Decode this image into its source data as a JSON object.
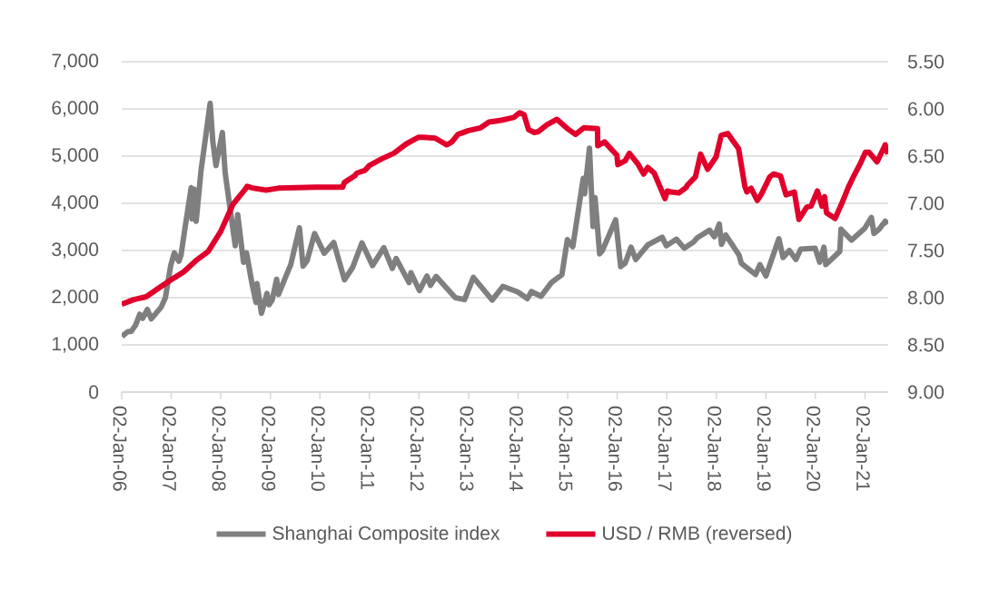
{
  "chart_data": {
    "type": "line",
    "series": [
      {
        "name": "Shanghai Composite index",
        "color": "#7f7f7f",
        "x": [
          "2006-01-04",
          "2006-02-15",
          "2006-03-15",
          "2006-04-15",
          "2006-05-15",
          "2006-06-05",
          "2006-07-10",
          "2006-08-08",
          "2006-09-15",
          "2006-10-20",
          "2006-11-20",
          "2006-12-29",
          "2007-01-25",
          "2007-02-27",
          "2007-03-15",
          "2007-04-15",
          "2007-05-29",
          "2007-06-05",
          "2007-06-20",
          "2007-07-05",
          "2007-08-10",
          "2007-09-10",
          "2007-10-16",
          "2007-11-05",
          "2007-11-28",
          "2008-01-14",
          "2008-02-04",
          "2008-03-31",
          "2008-04-18",
          "2008-05-06",
          "2008-06-18",
          "2008-07-10",
          "2008-08-18",
          "2008-09-18",
          "2008-09-25",
          "2008-10-28",
          "2008-12-08",
          "2008-12-23",
          "2009-01-15",
          "2009-02-17",
          "2009-03-03",
          "2009-04-30",
          "2009-06-01",
          "2009-08-04",
          "2009-08-31",
          "2009-09-29",
          "2009-11-24",
          "2010-02-03",
          "2010-04-14",
          "2010-07-02",
          "2010-08-31",
          "2010-11-08",
          "2011-01-25",
          "2011-04-18",
          "2011-06-20",
          "2011-07-18",
          "2011-10-21",
          "2011-11-04",
          "2012-01-06",
          "2012-03-01",
          "2012-03-27",
          "2012-05-07",
          "2012-09-26",
          "2012-12-03",
          "2013-02-06",
          "2013-06-25",
          "2013-09-12",
          "2013-12-31",
          "2014-03-11",
          "2014-04-10",
          "2014-06-20",
          "2014-09-04",
          "2014-11-21",
          "2014-12-31",
          "2015-02-09",
          "2015-04-27",
          "2015-05-07",
          "2015-06-12",
          "2015-07-08",
          "2015-07-23",
          "2015-08-26",
          "2015-09-15",
          "2015-12-22",
          "2016-01-28",
          "2016-03-01",
          "2016-04-13",
          "2016-05-18",
          "2016-08-16",
          "2016-11-29",
          "2016-12-30",
          "2017-03-14",
          "2017-05-10",
          "2017-07-18",
          "2017-08-14",
          "2017-11-13",
          "2017-12-19",
          "2018-01-24",
          "2018-02-09",
          "2018-03-12",
          "2018-06-19",
          "2018-07-05",
          "2018-10-18",
          "2018-11-19",
          "2019-01-03",
          "2019-04-08",
          "2019-05-09",
          "2019-06-24",
          "2019-08-12",
          "2019-09-16",
          "2019-12-31",
          "2020-02-03",
          "2020-03-05",
          "2020-03-19",
          "2020-06-30",
          "2020-07-09",
          "2020-09-25",
          "2020-12-31",
          "2021-02-18",
          "2021-03-09",
          "2021-04-15",
          "2021-05-31",
          "2021-06-18"
        ],
        "values": [
          1180,
          1280,
          1290,
          1420,
          1650,
          1560,
          1750,
          1550,
          1680,
          1800,
          2000,
          2680,
          2950,
          2770,
          2900,
          3500,
          4330,
          3670,
          4300,
          3620,
          4700,
          5350,
          6120,
          5300,
          4800,
          5500,
          4640,
          3470,
          3100,
          3760,
          2750,
          2950,
          2320,
          1900,
          2300,
          1670,
          2090,
          1850,
          1950,
          2390,
          2070,
          2480,
          2700,
          3480,
          2670,
          2780,
          3360,
          2940,
          3170,
          2380,
          2640,
          3160,
          2680,
          3060,
          2620,
          2830,
          2320,
          2530,
          2150,
          2460,
          2260,
          2450,
          2000,
          1960,
          2430,
          1950,
          2240,
          2120,
          1980,
          2130,
          2030,
          2320,
          2490,
          3230,
          3080,
          4530,
          4200,
          5170,
          3510,
          4120,
          2930,
          3000,
          3650,
          2660,
          2730,
          3070,
          2810,
          3120,
          3280,
          3100,
          3240,
          3050,
          3180,
          3270,
          3430,
          3290,
          3560,
          3130,
          3330,
          2900,
          2730,
          2490,
          2700,
          2460,
          3250,
          2850,
          3000,
          2810,
          3030,
          3050,
          2750,
          3070,
          2700,
          2980,
          3450,
          3220,
          3470,
          3700,
          3360,
          3450,
          3620,
          3560
        ]
      },
      {
        "name": "USD / RMB (reversed)",
        "color": "#e0002b",
        "axis": "y2",
        "x": [
          "2006-01-02",
          "2006-04-01",
          "2006-07-01",
          "2006-10-01",
          "2007-01-01",
          "2007-04-01",
          "2007-07-01",
          "2007-10-01",
          "2008-01-01",
          "2008-04-01",
          "2008-07-01",
          "2008-07-15",
          "2008-09-01",
          "2008-12-01",
          "2009-03-01",
          "2009-12-01",
          "2010-06-18",
          "2010-07-01",
          "2010-09-15",
          "2010-10-01",
          "2010-12-01",
          "2011-01-01",
          "2011-04-01",
          "2011-07-01",
          "2011-10-01",
          "2011-12-31",
          "2012-02-01",
          "2012-05-01",
          "2012-07-25",
          "2012-09-01",
          "2012-10-15",
          "2013-01-01",
          "2013-04-01",
          "2013-06-01",
          "2013-09-01",
          "2013-12-01",
          "2014-01-14",
          "2014-02-14",
          "2014-03-20",
          "2014-05-01",
          "2014-06-01",
          "2014-08-01",
          "2014-10-15",
          "2015-01-01",
          "2015-03-01",
          "2015-05-01",
          "2015-08-10",
          "2015-08-12",
          "2015-10-01",
          "2015-12-31",
          "2016-01-07",
          "2016-03-01",
          "2016-04-01",
          "2016-06-01",
          "2016-07-15",
          "2016-08-15",
          "2016-10-01",
          "2016-12-20",
          "2017-01-05",
          "2017-02-01",
          "2017-04-01",
          "2017-05-26",
          "2017-06-01",
          "2017-08-01",
          "2017-09-08",
          "2017-10-30",
          "2017-12-31",
          "2018-02-07",
          "2018-03-27",
          "2018-04-30",
          "2018-06-15",
          "2018-07-31",
          "2018-08-15",
          "2018-09-15",
          "2018-10-31",
          "2018-12-01",
          "2019-01-31",
          "2019-02-28",
          "2019-04-20",
          "2019-05-31",
          "2019-07-31",
          "2019-09-03",
          "2019-10-31",
          "2019-12-01",
          "2020-01-17",
          "2020-02-20",
          "2020-03-10",
          "2020-03-24",
          "2020-05-27",
          "2020-07-15",
          "2020-09-01",
          "2020-10-15",
          "2020-12-01",
          "2021-01-05",
          "2021-02-01",
          "2021-03-31",
          "2021-04-15",
          "2021-05-31",
          "2021-06-20"
        ],
        "values": [
          8.07,
          8.02,
          7.99,
          7.9,
          7.81,
          7.73,
          7.61,
          7.51,
          7.3,
          7.01,
          6.85,
          6.82,
          6.84,
          6.86,
          6.84,
          6.83,
          6.83,
          6.78,
          6.71,
          6.68,
          6.65,
          6.6,
          6.53,
          6.47,
          6.37,
          6.3,
          6.3,
          6.31,
          6.38,
          6.35,
          6.27,
          6.23,
          6.2,
          6.14,
          6.12,
          6.09,
          6.04,
          6.06,
          6.22,
          6.25,
          6.24,
          6.17,
          6.11,
          6.21,
          6.27,
          6.2,
          6.21,
          6.39,
          6.35,
          6.49,
          6.59,
          6.55,
          6.47,
          6.58,
          6.69,
          6.62,
          6.68,
          6.95,
          6.87,
          6.88,
          6.89,
          6.83,
          6.81,
          6.72,
          6.48,
          6.64,
          6.51,
          6.28,
          6.26,
          6.33,
          6.42,
          6.82,
          6.88,
          6.84,
          6.97,
          6.9,
          6.72,
          6.69,
          6.71,
          6.91,
          6.88,
          7.17,
          7.04,
          7.03,
          6.87,
          7.03,
          6.93,
          7.1,
          7.16,
          7.0,
          6.83,
          6.7,
          6.57,
          6.46,
          6.46,
          6.56,
          6.52,
          6.38,
          6.48
        ]
      }
    ],
    "xlim": [
      "2006-01-02",
      "2021-06-22"
    ],
    "xticks": [
      {
        "value": "2006-01-02",
        "label": "02-Jan-06"
      },
      {
        "value": "2007-01-02",
        "label": "02-Jan-07"
      },
      {
        "value": "2008-01-02",
        "label": "02-Jan-08"
      },
      {
        "value": "2009-01-02",
        "label": "02-Jan-09"
      },
      {
        "value": "2010-01-02",
        "label": "02-Jan-10"
      },
      {
        "value": "2011-01-02",
        "label": "02-Jan-11"
      },
      {
        "value": "2012-01-02",
        "label": "02-Jan-12"
      },
      {
        "value": "2013-01-02",
        "label": "02-Jan-13"
      },
      {
        "value": "2014-01-02",
        "label": "02-Jan-14"
      },
      {
        "value": "2015-01-02",
        "label": "02-Jan-15"
      },
      {
        "value": "2016-01-02",
        "label": "02-Jan-16"
      },
      {
        "value": "2017-01-02",
        "label": "02-Jan-17"
      },
      {
        "value": "2018-01-02",
        "label": "02-Jan-18"
      },
      {
        "value": "2019-01-02",
        "label": "02-Jan-19"
      },
      {
        "value": "2020-01-02",
        "label": "02-Jan-20"
      },
      {
        "value": "2021-01-02",
        "label": "02-Jan-21"
      }
    ],
    "ylim": [
      0,
      7000
    ],
    "yticks": [
      0,
      {
        "value": 1000,
        "label": "1,000"
      },
      {
        "value": 2000,
        "label": "2,000"
      },
      {
        "value": 3000,
        "label": "3,000"
      },
      {
        "value": 4000,
        "label": "4,000"
      },
      {
        "value": 5000,
        "label": "5,000"
      },
      {
        "value": 6000,
        "label": "6,000"
      },
      {
        "value": 7000,
        "label": "7,000"
      }
    ],
    "y2lim": [
      9,
      5.5
    ],
    "y2ticks": [
      {
        "value": 5.5,
        "label": "5.50"
      },
      {
        "value": 6,
        "label": "6.00"
      },
      {
        "value": 6.5,
        "label": "6.50"
      },
      {
        "value": 7,
        "label": "7.00"
      },
      {
        "value": 7.5,
        "label": "7.50"
      },
      {
        "value": 8,
        "label": "8.00"
      },
      {
        "value": 8.5,
        "label": "8.50"
      },
      {
        "value": 9,
        "label": "9.00"
      }
    ],
    "grid": "y",
    "legend": "bottom",
    "marker": "none",
    "line_style": "solid"
  }
}
